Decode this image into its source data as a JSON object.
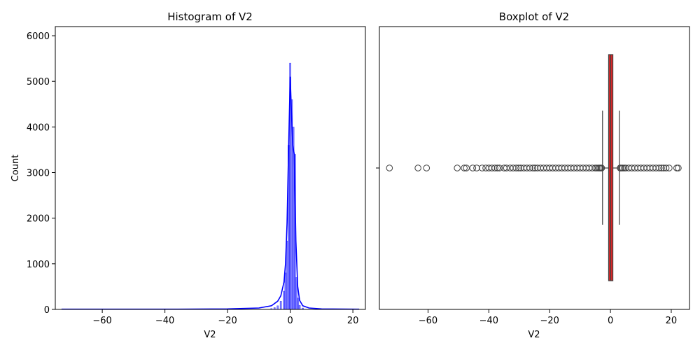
{
  "chart_data": [
    {
      "type": "histogram",
      "title": "Histogram of V2",
      "xlabel": "V2",
      "ylabel": "Count",
      "xlim": [
        -75,
        24
      ],
      "ylim": [
        0,
        6200
      ],
      "xticks": [
        -60,
        -40,
        -20,
        0,
        20
      ],
      "yticks": [
        0,
        1000,
        2000,
        3000,
        4000,
        5000,
        6000
      ],
      "bar_color": "#0000ff",
      "kde_color": "#0000ff",
      "bins": [
        {
          "x": -6.0,
          "count": 20
        },
        {
          "x": -5.0,
          "count": 40
        },
        {
          "x": -4.0,
          "count": 80
        },
        {
          "x": -3.0,
          "count": 180
        },
        {
          "x": -2.0,
          "count": 400
        },
        {
          "x": -1.5,
          "count": 800
        },
        {
          "x": -1.0,
          "count": 1500
        },
        {
          "x": -0.5,
          "count": 3600
        },
        {
          "x": 0.0,
          "count": 5400
        },
        {
          "x": 0.5,
          "count": 4600
        },
        {
          "x": 1.0,
          "count": 4000
        },
        {
          "x": 1.5,
          "count": 3400
        },
        {
          "x": 2.0,
          "count": 700
        },
        {
          "x": 2.5,
          "count": 250
        },
        {
          "x": 3.0,
          "count": 90
        },
        {
          "x": 4.0,
          "count": 30
        }
      ],
      "kde": [
        {
          "x": -73,
          "y": 5
        },
        {
          "x": -40,
          "y": 5
        },
        {
          "x": -20,
          "y": 10
        },
        {
          "x": -10,
          "y": 30
        },
        {
          "x": -6,
          "y": 80
        },
        {
          "x": -4,
          "y": 180
        },
        {
          "x": -3,
          "y": 300
        },
        {
          "x": -2,
          "y": 600
        },
        {
          "x": -1.5,
          "y": 1000
        },
        {
          "x": -1,
          "y": 1900
        },
        {
          "x": -0.5,
          "y": 3600
        },
        {
          "x": 0,
          "y": 5100
        },
        {
          "x": 0.4,
          "y": 4300
        },
        {
          "x": 0.8,
          "y": 3600
        },
        {
          "x": 1.3,
          "y": 3400
        },
        {
          "x": 1.8,
          "y": 1500
        },
        {
          "x": 2.4,
          "y": 500
        },
        {
          "x": 3,
          "y": 200
        },
        {
          "x": 4,
          "y": 80
        },
        {
          "x": 6,
          "y": 30
        },
        {
          "x": 10,
          "y": 10
        },
        {
          "x": 22,
          "y": 5
        }
      ]
    },
    {
      "type": "boxplot",
      "title": "Boxplot of V2",
      "xlabel": "V2",
      "xlim": [
        -76,
        26
      ],
      "xticks": [
        -60,
        -40,
        -20,
        0,
        20
      ],
      "box_color": "#d62728",
      "q1": -0.6,
      "median": 0.07,
      "q3": 0.8,
      "whisker_low": -2.6,
      "whisker_high": 2.9,
      "outliers": [
        -72.7,
        -63.3,
        -60.5,
        -50.4,
        -48.1,
        -47.4,
        -45.3,
        -44.0,
        -42.2,
        -41.0,
        -40.0,
        -39.0,
        -38.0,
        -37.2,
        -36.5,
        -35.0,
        -34.2,
        -33.0,
        -32.0,
        -31.0,
        -30.2,
        -29.5,
        -28.5,
        -27.5,
        -26.5,
        -25.5,
        -24.8,
        -24.0,
        -23.0,
        -22.0,
        -21.0,
        -20.0,
        -19.0,
        -18.0,
        -17.0,
        -16.0,
        -15.0,
        -14.0,
        -13.0,
        -12.0,
        -11.0,
        -10.0,
        -9.0,
        -8.0,
        -7.0,
        -6.0,
        -5.0,
        -4.5,
        -4.0,
        -3.6,
        -3.2,
        -2.9,
        3.2,
        3.5,
        4.0,
        4.5,
        5.0,
        6.0,
        7.0,
        8.0,
        9.0,
        10.0,
        11.0,
        12.0,
        13.0,
        14.0,
        15.0,
        16.0,
        16.8,
        17.5,
        18.3,
        19.3,
        21.8,
        22.3
      ]
    }
  ]
}
